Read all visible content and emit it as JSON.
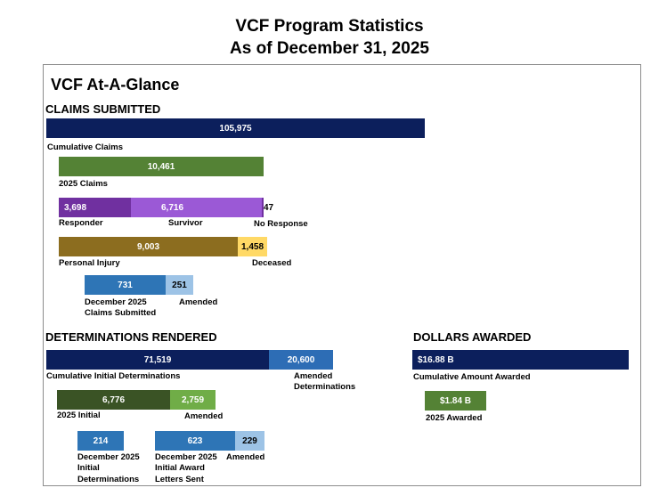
{
  "title_line1": "VCF Program Statistics",
  "title_line2": "As of December 31, 2025",
  "heading": "VCF At-A-Glance",
  "chart_data": {
    "type": "bar",
    "title": "VCF Program Statistics As of December 31, 2025",
    "claims_submitted": {
      "heading": "CLAIMS SUBMITTED",
      "cumulative": {
        "label": "Cumulative Claims",
        "value": 105975,
        "text": "105,975"
      },
      "year": {
        "label": "2025 Claims",
        "value": 10461,
        "text": "10,461"
      },
      "by_type": [
        {
          "label": "Responder",
          "value": 3698,
          "text": "3,698"
        },
        {
          "label": "Survivor",
          "value": 6716,
          "text": "6,716"
        },
        {
          "label": "No Response",
          "value": 47,
          "text": "47"
        }
      ],
      "by_outcome": [
        {
          "label": "Personal Injury",
          "value": 9003,
          "text": "9,003"
        },
        {
          "label": "Deceased",
          "value": 1458,
          "text": "1,458"
        }
      ],
      "december": [
        {
          "label": "December 2025 Claims Submitted",
          "line1": "December 2025",
          "line2": "Claims Submitted",
          "value": 731,
          "text": "731"
        },
        {
          "label": "Amended",
          "value": 251,
          "text": "251"
        }
      ]
    },
    "determinations": {
      "heading": "DETERMINATIONS RENDERED",
      "cumulative": [
        {
          "label": "Cumulative Initial Determinations",
          "value": 71519,
          "text": "71,519"
        },
        {
          "label": "Amended Determinations",
          "line1": "Amended",
          "line2": "Determinations",
          "value": 20600,
          "text": "20,600"
        }
      ],
      "year": [
        {
          "label": "2025 Initial",
          "value": 6776,
          "text": "6,776"
        },
        {
          "label": "Amended",
          "value": 2759,
          "text": "2,759"
        }
      ],
      "december_initial": {
        "label": "December 2025 Initial Determinations",
        "line1": "December 2025",
        "line2": "Initial",
        "line3": "Determinations",
        "value": 214,
        "text": "214"
      },
      "december_award_letters": [
        {
          "label": "December 2025 Initial Award Letters Sent",
          "line1": "December 2025",
          "line2": "Initial Award",
          "line3": "Letters Sent",
          "value": 623,
          "text": "623"
        },
        {
          "label": "Amended",
          "value": 229,
          "text": "229"
        }
      ]
    },
    "dollars_awarded": {
      "heading": "DOLLARS AWARDED",
      "cumulative": {
        "label": "Cumulative Amount Awarded",
        "value_billions": 16.88,
        "text": "$16.88 B"
      },
      "year": {
        "label": "2025 Awarded",
        "value_billions": 1.84,
        "text": "$1.84 B"
      }
    }
  },
  "colors": {
    "navy": "#0c1f5c",
    "green": "#548235",
    "dark_green": "#3a5325",
    "light_green": "#70ad47",
    "purple_dark": "#7030a0",
    "purple_light": "#9b59d6",
    "olive_gold": "#8c6d1f",
    "light_gold": "#ffd966",
    "steel_blue": "#2e75b6",
    "mid_blue": "#2d6db5",
    "sky_blue": "#9dc3e6"
  }
}
